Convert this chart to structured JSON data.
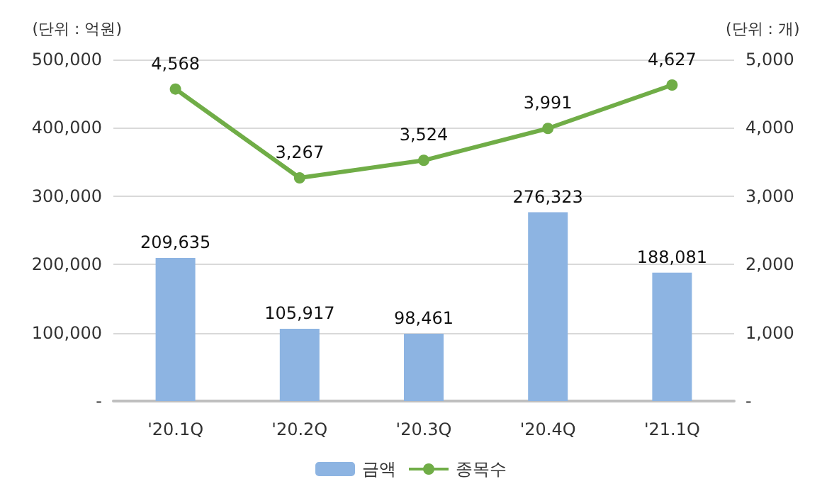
{
  "chart_data": {
    "type": "bar",
    "categories": [
      "'20.1Q",
      "'20.2Q",
      "'20.3Q",
      "'20.4Q",
      "'21.1Q"
    ],
    "series": [
      {
        "name": "금액",
        "color": "#8db4e2",
        "values": [
          209635,
          105917,
          98461,
          276323,
          188081
        ],
        "value_labels": [
          "209,635",
          "105,917",
          "98,461",
          "276,323",
          "188,081"
        ]
      },
      {
        "name": "종목수",
        "type": "line",
        "axis": "y2",
        "color": "#70ad47",
        "values": [
          4568,
          3267,
          3524,
          3991,
          4627
        ],
        "value_labels": [
          "4,568",
          "3,267",
          "3,524",
          "3,991",
          "4,627"
        ]
      }
    ],
    "ylabel": "(단위 : 억원)",
    "y2label": "(단위 : 개)",
    "ylim": [
      0,
      500000
    ],
    "yticks": [
      {
        "value": 0,
        "label": "-"
      },
      {
        "value": 100000,
        "label": "100,000"
      },
      {
        "value": 200000,
        "label": "200,000"
      },
      {
        "value": 300000,
        "label": "300,000"
      },
      {
        "value": 400000,
        "label": "400,000"
      },
      {
        "value": 500000,
        "label": "500,000"
      }
    ],
    "y2lim": [
      0,
      5000
    ],
    "y2ticks": [
      {
        "value": 0,
        "label": "-"
      },
      {
        "value": 1000,
        "label": "1,000"
      },
      {
        "value": 2000,
        "label": "2,000"
      },
      {
        "value": 3000,
        "label": "3,000"
      },
      {
        "value": 4000,
        "label": "4,000"
      },
      {
        "value": 5000,
        "label": "5,000"
      }
    ],
    "grid": "y",
    "legend": "bottom",
    "marker": "circle",
    "line_style": "solid"
  }
}
